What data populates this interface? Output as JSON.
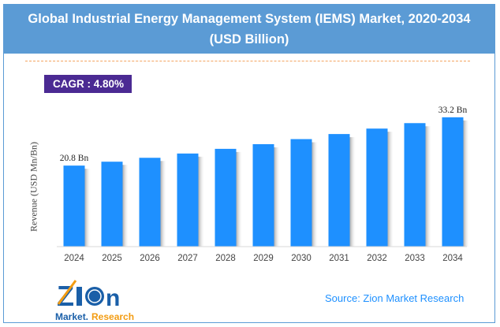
{
  "header": {
    "title_line1": "Global Industrial Energy Management System (IEMS) Market, 2020-2034",
    "title_line2": "(USD Billion)"
  },
  "cagr": "CAGR :  4.80%",
  "source": "Source: Zion Market Research",
  "logo": {
    "text_top": "Zion",
    "text_bottom": "Market.Research"
  },
  "colors": {
    "bar": "#1e90ff",
    "header": "#5b9bd5",
    "cagr_box": "#4b2a93",
    "dash": "#f4a460"
  },
  "chart_data": {
    "type": "bar",
    "title": "Global Industrial Energy Management System (IEMS) Market, 2020-2034 (USD Billion)",
    "ylabel": "Revenue (USD Mn/Bn)",
    "xlabel": "",
    "categories": [
      "2024",
      "2025",
      "2026",
      "2027",
      "2028",
      "2029",
      "2030",
      "2031",
      "2032",
      "2033",
      "2034"
    ],
    "values": [
      20.8,
      21.8,
      22.8,
      23.9,
      25.1,
      26.3,
      27.6,
      28.9,
      30.3,
      31.7,
      33.2
    ],
    "data_labels": {
      "0": "20.8 Bn",
      "10": "33.2 Bn"
    },
    "ylim": [
      0,
      36
    ],
    "grid": false
  }
}
